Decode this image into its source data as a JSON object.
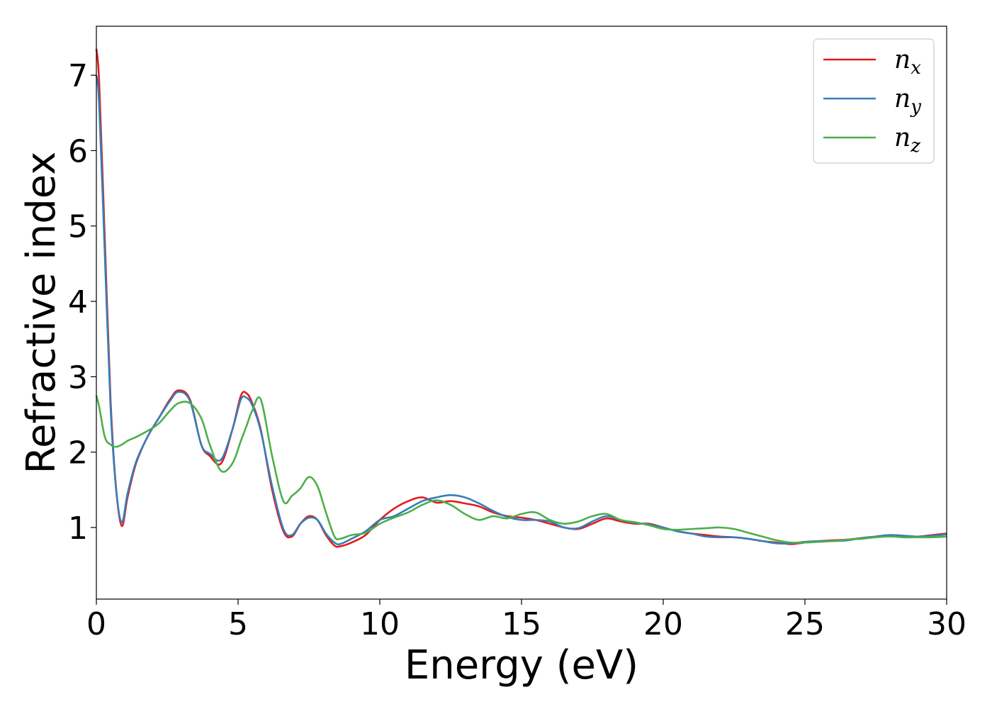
{
  "chart_data": {
    "type": "line",
    "xlabel": "Energy (eV)",
    "ylabel": "Refractive index",
    "xlim": [
      0,
      30
    ],
    "ylim": [
      0.05,
      7.65
    ],
    "xticks": [
      0,
      5,
      10,
      15,
      20,
      25,
      30
    ],
    "xtick_labels": [
      "0",
      "5",
      "10",
      "15",
      "20",
      "25",
      "30"
    ],
    "yticks": [
      1,
      2,
      3,
      4,
      5,
      6,
      7
    ],
    "ytick_labels": [
      "1",
      "2",
      "3",
      "4",
      "5",
      "6",
      "7"
    ],
    "grid": false,
    "legend_position": "top-right",
    "series": [
      {
        "name": "n",
        "subscript": "x",
        "color": "#e41a1c",
        "x": [
          0,
          0.1,
          0.3,
          0.5,
          0.7,
          0.9,
          1.1,
          1.4,
          1.8,
          2.2,
          2.6,
          2.9,
          3.3,
          3.7,
          4.0,
          4.4,
          4.8,
          5.1,
          5.3,
          5.5,
          5.8,
          6.2,
          6.6,
          6.9,
          7.2,
          7.5,
          7.8,
          8.1,
          8.4,
          8.6,
          9.0,
          9.5,
          10.0,
          10.5,
          11.0,
          11.5,
          12.0,
          12.5,
          13.0,
          13.5,
          14.0,
          14.5,
          15.0,
          15.5,
          16.0,
          16.5,
          17.0,
          17.5,
          18.0,
          18.5,
          19.0,
          19.5,
          20.0,
          20.5,
          21.0,
          21.5,
          22.0,
          22.5,
          23.0,
          23.5,
          24.0,
          24.5,
          25.0,
          25.5,
          26.0,
          26.5,
          27.0,
          27.5,
          28.0,
          28.5,
          29.0,
          29.5,
          30.0
        ],
        "values": [
          7.35,
          6.9,
          4.8,
          2.7,
          1.5,
          1.02,
          1.4,
          1.85,
          2.2,
          2.45,
          2.7,
          2.82,
          2.7,
          2.1,
          1.95,
          1.85,
          2.3,
          2.75,
          2.78,
          2.65,
          2.3,
          1.5,
          0.95,
          0.88,
          1.05,
          1.15,
          1.1,
          0.9,
          0.76,
          0.75,
          0.8,
          0.9,
          1.1,
          1.25,
          1.35,
          1.4,
          1.33,
          1.35,
          1.32,
          1.28,
          1.2,
          1.15,
          1.13,
          1.1,
          1.05,
          1.0,
          0.98,
          1.05,
          1.12,
          1.08,
          1.05,
          1.05,
          1.0,
          0.95,
          0.92,
          0.9,
          0.88,
          0.87,
          0.85,
          0.82,
          0.8,
          0.78,
          0.8,
          0.82,
          0.83,
          0.84,
          0.86,
          0.88,
          0.9,
          0.89,
          0.88,
          0.9,
          0.92
        ]
      },
      {
        "name": "n",
        "subscript": "y",
        "color": "#377eb8",
        "x": [
          0,
          0.1,
          0.3,
          0.5,
          0.7,
          0.9,
          1.1,
          1.4,
          1.8,
          2.2,
          2.6,
          2.9,
          3.3,
          3.7,
          4.0,
          4.4,
          4.8,
          5.1,
          5.3,
          5.5,
          5.8,
          6.2,
          6.6,
          6.9,
          7.2,
          7.5,
          7.8,
          8.1,
          8.4,
          8.6,
          9.0,
          9.5,
          10.0,
          10.5,
          11.0,
          11.5,
          12.0,
          12.5,
          13.0,
          13.5,
          14.0,
          14.5,
          15.0,
          15.5,
          16.0,
          16.5,
          17.0,
          17.5,
          18.0,
          18.5,
          19.0,
          19.5,
          20.0,
          20.5,
          21.0,
          21.5,
          22.0,
          22.5,
          23.0,
          23.5,
          24.0,
          24.5,
          25.0,
          25.5,
          26.0,
          26.5,
          27.0,
          27.5,
          28.0,
          28.5,
          29.0,
          29.5,
          30.0
        ],
        "values": [
          7.0,
          6.6,
          4.6,
          2.6,
          1.5,
          1.07,
          1.45,
          1.87,
          2.2,
          2.45,
          2.68,
          2.8,
          2.68,
          2.1,
          1.98,
          1.9,
          2.3,
          2.7,
          2.72,
          2.62,
          2.28,
          1.55,
          0.98,
          0.9,
          1.05,
          1.13,
          1.1,
          0.92,
          0.8,
          0.78,
          0.85,
          0.95,
          1.1,
          1.15,
          1.25,
          1.35,
          1.4,
          1.43,
          1.4,
          1.32,
          1.22,
          1.14,
          1.1,
          1.1,
          1.08,
          1.0,
          0.99,
          1.08,
          1.15,
          1.1,
          1.06,
          1.04,
          1.0,
          0.95,
          0.92,
          0.88,
          0.87,
          0.87,
          0.85,
          0.82,
          0.79,
          0.79,
          0.81,
          0.82,
          0.82,
          0.83,
          0.86,
          0.88,
          0.9,
          0.89,
          0.88,
          0.89,
          0.91
        ]
      },
      {
        "name": "n",
        "subscript": "z",
        "color": "#4daf4a",
        "x": [
          0,
          0.1,
          0.3,
          0.5,
          0.7,
          0.9,
          1.1,
          1.4,
          1.8,
          2.2,
          2.6,
          2.9,
          3.3,
          3.7,
          4.0,
          4.4,
          4.8,
          5.1,
          5.3,
          5.5,
          5.8,
          6.2,
          6.6,
          6.9,
          7.2,
          7.5,
          7.8,
          8.1,
          8.4,
          8.6,
          9.0,
          9.5,
          10.0,
          10.5,
          11.0,
          11.5,
          12.0,
          12.5,
          13.0,
          13.5,
          14.0,
          14.5,
          15.0,
          15.5,
          16.0,
          16.5,
          17.0,
          17.5,
          18.0,
          18.5,
          19.0,
          19.5,
          20.0,
          20.5,
          21.0,
          21.5,
          22.0,
          22.5,
          23.0,
          23.5,
          24.0,
          24.5,
          25.0,
          25.5,
          26.0,
          26.5,
          27.0,
          27.5,
          28.0,
          28.5,
          29.0,
          29.5,
          30.0
        ],
        "values": [
          2.75,
          2.6,
          2.2,
          2.1,
          2.07,
          2.1,
          2.15,
          2.2,
          2.28,
          2.38,
          2.55,
          2.65,
          2.65,
          2.45,
          2.1,
          1.75,
          1.85,
          2.15,
          2.35,
          2.55,
          2.7,
          1.95,
          1.35,
          1.42,
          1.52,
          1.67,
          1.55,
          1.2,
          0.88,
          0.85,
          0.9,
          0.93,
          1.05,
          1.13,
          1.2,
          1.3,
          1.36,
          1.3,
          1.18,
          1.1,
          1.15,
          1.12,
          1.18,
          1.2,
          1.1,
          1.05,
          1.08,
          1.15,
          1.18,
          1.1,
          1.07,
          1.03,
          0.98,
          0.97,
          0.98,
          0.99,
          1.0,
          0.98,
          0.93,
          0.88,
          0.83,
          0.8,
          0.8,
          0.81,
          0.82,
          0.84,
          0.85,
          0.87,
          0.88,
          0.87,
          0.87,
          0.87,
          0.88
        ]
      }
    ]
  }
}
